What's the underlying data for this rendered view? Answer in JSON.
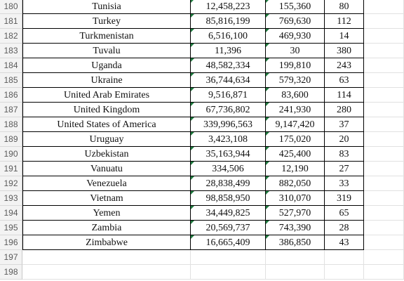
{
  "rows": [
    {
      "num": "180",
      "country": "Tunisia",
      "population": "12,458,223",
      "area": "155,360",
      "density": "80"
    },
    {
      "num": "181",
      "country": "Turkey",
      "population": "85,816,199",
      "area": "769,630",
      "density": "112"
    },
    {
      "num": "182",
      "country": "Turkmenistan",
      "population": "6,516,100",
      "area": "469,930",
      "density": "14"
    },
    {
      "num": "183",
      "country": "Tuvalu",
      "population": "11,396",
      "area": "30",
      "density": "380"
    },
    {
      "num": "184",
      "country": "Uganda",
      "population": "48,582,334",
      "area": "199,810",
      "density": "243"
    },
    {
      "num": "185",
      "country": "Ukraine",
      "population": "36,744,634",
      "area": "579,320",
      "density": "63"
    },
    {
      "num": "186",
      "country": "United Arab Emirates",
      "population": "9,516,871",
      "area": "83,600",
      "density": "114"
    },
    {
      "num": "187",
      "country": "United Kingdom",
      "population": "67,736,802",
      "area": "241,930",
      "density": "280"
    },
    {
      "num": "188",
      "country": "United States of America",
      "population": "339,996,563",
      "area": "9,147,420",
      "density": "37"
    },
    {
      "num": "189",
      "country": "Uruguay",
      "population": "3,423,108",
      "area": "175,020",
      "density": "20"
    },
    {
      "num": "190",
      "country": "Uzbekistan",
      "population": "35,163,944",
      "area": "425,400",
      "density": "83"
    },
    {
      "num": "191",
      "country": "Vanuatu",
      "population": "334,506",
      "area": "12,190",
      "density": "27"
    },
    {
      "num": "192",
      "country": "Venezuela",
      "population": "28,838,499",
      "area": "882,050",
      "density": "33"
    },
    {
      "num": "193",
      "country": "Vietnam",
      "population": "98,858,950",
      "area": "310,070",
      "density": "319"
    },
    {
      "num": "194",
      "country": "Yemen",
      "population": "34,449,825",
      "area": "527,970",
      "density": "65"
    },
    {
      "num": "195",
      "country": "Zambia",
      "population": "20,569,737",
      "area": "743,390",
      "density": "28"
    },
    {
      "num": "196",
      "country": "Zimbabwe",
      "population": "16,665,409",
      "area": "386,850",
      "density": "43"
    }
  ],
  "empty_rows": [
    "197",
    "198"
  ],
  "colors": {
    "row_header_bg": "#f3f3f3",
    "number_marker": "#1e7b3e",
    "border": "#000000",
    "gridline": "#e1e1e1"
  }
}
